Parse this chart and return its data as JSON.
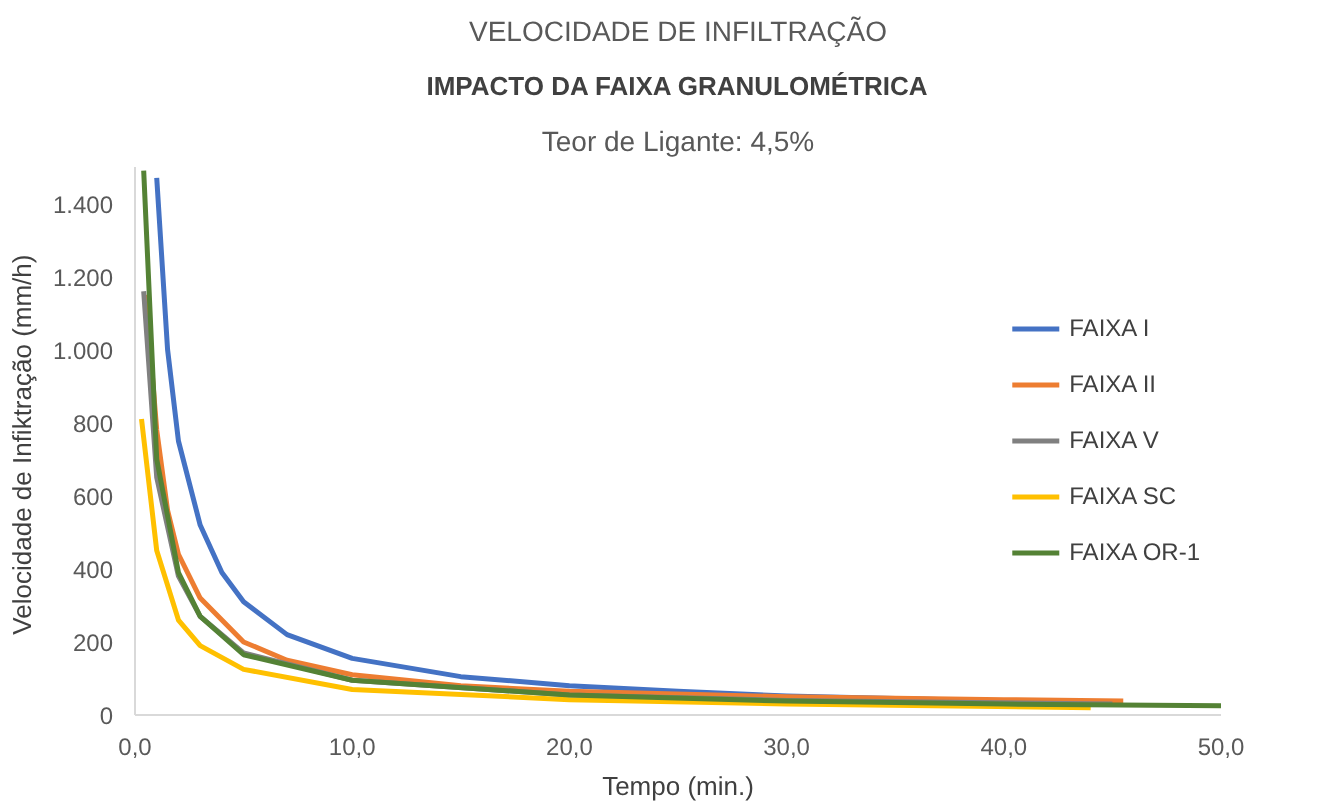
{
  "chart_data": {
    "type": "line",
    "title": "VELOCIDADE DE INFILTRAÇÃO",
    "subtitle": "IMPACTO DA FAIXA GRANULOMÉTRICA",
    "annotations": [
      "Teor de Ligante: 4,5%"
    ],
    "xlabel": "Tempo (min.)",
    "ylabel": "Velocidade de Infiktração  (mm/h)",
    "xlim": [
      0,
      50
    ],
    "ylim": [
      0,
      1500
    ],
    "xticks": [
      {
        "value": 0,
        "label": "0,0"
      },
      {
        "value": 10,
        "label": "10,0"
      },
      {
        "value": 20,
        "label": "20,0"
      },
      {
        "value": 30,
        "label": "30,0"
      },
      {
        "value": 40,
        "label": "40,0"
      },
      {
        "value": 50,
        "label": "50,0"
      }
    ],
    "yticks": [
      0,
      200,
      400,
      600,
      800,
      {
        "value": 1000,
        "label": "1.000"
      },
      {
        "value": 1200,
        "label": "1.200"
      },
      {
        "value": 1400,
        "label": "1.400"
      }
    ],
    "grid": false,
    "legend": "right",
    "marker": "none",
    "line_style": "solid",
    "series": [
      {
        "name": "FAIXA I",
        "color": "#4472c4",
        "x": [
          1,
          1.5,
          2,
          3,
          4,
          5,
          7,
          10,
          15,
          20,
          25,
          30,
          35,
          40
        ],
        "values": [
          1470,
          1000,
          750,
          520,
          390,
          310,
          220,
          155,
          105,
          80,
          65,
          52,
          45,
          38
        ]
      },
      {
        "name": "FAIXA II",
        "color": "#ed7d31",
        "x": [
          0.5,
          1,
          1.5,
          2,
          3,
          5,
          7,
          10,
          15,
          20,
          30,
          40,
          45.5
        ],
        "values": [
          1150,
          780,
          560,
          440,
          320,
          200,
          150,
          110,
          80,
          65,
          50,
          42,
          38
        ]
      },
      {
        "name": "FAIXA V",
        "color": "#808080",
        "x": [
          0.4,
          1,
          2,
          3,
          5,
          10,
          20,
          30,
          45
        ],
        "values": [
          1160,
          650,
          380,
          270,
          170,
          95,
          55,
          40,
          30
        ]
      },
      {
        "name": "FAIXA SC",
        "color": "#ffc000",
        "x": [
          0.3,
          1,
          2,
          3,
          5,
          10,
          20,
          30,
          44
        ],
        "values": [
          810,
          450,
          260,
          190,
          125,
          70,
          42,
          30,
          20
        ]
      },
      {
        "name": "FAIXA OR-1",
        "color": "#548235",
        "x": [
          0.4,
          1,
          2,
          3,
          5,
          10,
          20,
          30,
          40,
          50
        ],
        "values": [
          1490,
          700,
          390,
          270,
          165,
          95,
          55,
          38,
          30,
          25
        ]
      }
    ]
  }
}
